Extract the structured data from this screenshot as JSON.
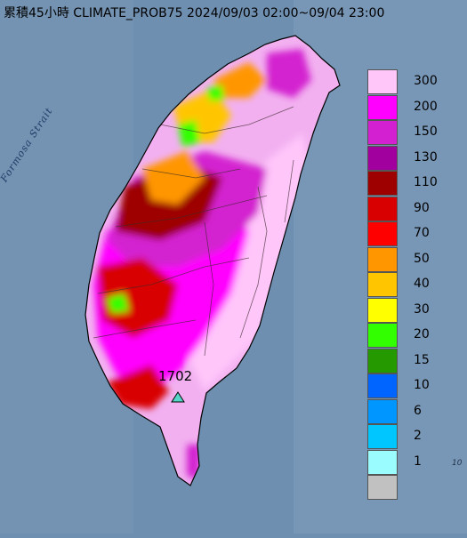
{
  "title": "累積45小時 CLIMATE_PROB75 2024/09/03 02:00~09/04 23:00",
  "water_label": "Formosa Strait",
  "station": {
    "label": "1702",
    "marker": "triangle-marker-icon",
    "color": "#55d6c8"
  },
  "edge_label": "10",
  "colors": {
    "sea": "#6f8fb0",
    "land_base": "#f2b0f0"
  },
  "legend": [
    {
      "label": "300",
      "color": "#ffc6fa"
    },
    {
      "label": "200",
      "color": "#ff00ff"
    },
    {
      "label": "150",
      "color": "#d320d0"
    },
    {
      "label": "130",
      "color": "#a1009f"
    },
    {
      "label": "110",
      "color": "#9e0000"
    },
    {
      "label": "90",
      "color": "#d80000"
    },
    {
      "label": "70",
      "color": "#ff0000"
    },
    {
      "label": "50",
      "color": "#ff9600"
    },
    {
      "label": "40",
      "color": "#ffc600"
    },
    {
      "label": "30",
      "color": "#ffff00"
    },
    {
      "label": "20",
      "color": "#32ff00"
    },
    {
      "label": "15",
      "color": "#259900"
    },
    {
      "label": "10",
      "color": "#0064ff"
    },
    {
      "label": "6",
      "color": "#0096ff"
    },
    {
      "label": "2",
      "color": "#00c6ff"
    },
    {
      "label": "1",
      "color": "#9bfcff"
    },
    {
      "label": "",
      "color": "#c1c1c1"
    }
  ]
}
